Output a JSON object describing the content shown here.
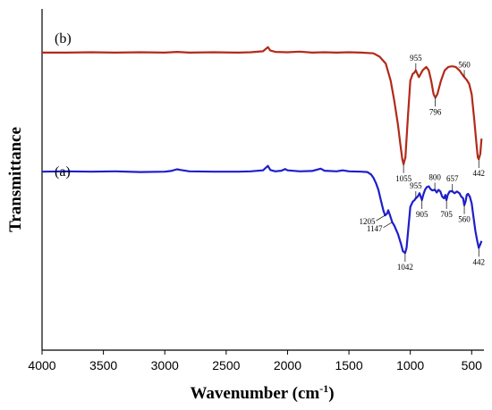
{
  "chart_data": {
    "type": "line",
    "title": "",
    "xlabel": "Wavenumber (cm",
    "xlabel_sup": "-1",
    "xlabel_tail": ")",
    "ylabel": "Transmittance",
    "xlim": [
      4000,
      400
    ],
    "x_reversed": true,
    "x_ticks": [
      "4000",
      "3500",
      "3000",
      "2500",
      "2000",
      "1500",
      "1000",
      "500"
    ],
    "grid": false,
    "legend": "none",
    "series": [
      {
        "name": "(b)",
        "color": "#b22a1a",
        "points": [
          [
            4000,
            0.872
          ],
          [
            3800,
            0.872
          ],
          [
            3600,
            0.873
          ],
          [
            3400,
            0.872
          ],
          [
            3200,
            0.873
          ],
          [
            3000,
            0.872
          ],
          [
            2900,
            0.874
          ],
          [
            2800,
            0.872
          ],
          [
            2600,
            0.873
          ],
          [
            2400,
            0.872
          ],
          [
            2300,
            0.873
          ],
          [
            2200,
            0.876
          ],
          [
            2160,
            0.888
          ],
          [
            2140,
            0.878
          ],
          [
            2100,
            0.874
          ],
          [
            2000,
            0.873
          ],
          [
            1900,
            0.875
          ],
          [
            1800,
            0.872
          ],
          [
            1700,
            0.873
          ],
          [
            1600,
            0.872
          ],
          [
            1500,
            0.873
          ],
          [
            1400,
            0.872
          ],
          [
            1300,
            0.87
          ],
          [
            1250,
            0.86
          ],
          [
            1200,
            0.84
          ],
          [
            1160,
            0.79
          ],
          [
            1130,
            0.73
          ],
          [
            1100,
            0.66
          ],
          [
            1080,
            0.6
          ],
          [
            1065,
            0.56
          ],
          [
            1055,
            0.545
          ],
          [
            1040,
            0.565
          ],
          [
            1020,
            0.68
          ],
          [
            1000,
            0.79
          ],
          [
            980,
            0.81
          ],
          [
            970,
            0.812
          ],
          [
            955,
            0.82
          ],
          [
            930,
            0.8
          ],
          [
            900,
            0.82
          ],
          [
            870,
            0.83
          ],
          [
            850,
            0.82
          ],
          [
            830,
            0.79
          ],
          [
            810,
            0.75
          ],
          [
            796,
            0.74
          ],
          [
            780,
            0.75
          ],
          [
            750,
            0.79
          ],
          [
            720,
            0.82
          ],
          [
            690,
            0.83
          ],
          [
            660,
            0.832
          ],
          [
            630,
            0.83
          ],
          [
            600,
            0.82
          ],
          [
            580,
            0.81
          ],
          [
            560,
            0.8
          ],
          [
            540,
            0.792
          ],
          [
            520,
            0.78
          ],
          [
            500,
            0.75
          ],
          [
            480,
            0.68
          ],
          [
            460,
            0.6
          ],
          [
            450,
            0.565
          ],
          [
            442,
            0.56
          ],
          [
            430,
            0.575
          ],
          [
            420,
            0.62
          ]
        ]
      },
      {
        "name": "(a)",
        "color": "#1e1ecc",
        "points": [
          [
            4000,
            0.523
          ],
          [
            3800,
            0.524
          ],
          [
            3600,
            0.523
          ],
          [
            3400,
            0.524
          ],
          [
            3200,
            0.522
          ],
          [
            3000,
            0.523
          ],
          [
            2950,
            0.525
          ],
          [
            2900,
            0.53
          ],
          [
            2870,
            0.528
          ],
          [
            2800,
            0.524
          ],
          [
            2600,
            0.523
          ],
          [
            2400,
            0.523
          ],
          [
            2300,
            0.524
          ],
          [
            2200,
            0.527
          ],
          [
            2160,
            0.54
          ],
          [
            2140,
            0.528
          ],
          [
            2100,
            0.524
          ],
          [
            2050,
            0.526
          ],
          [
            2020,
            0.531
          ],
          [
            2000,
            0.527
          ],
          [
            1900,
            0.524
          ],
          [
            1800,
            0.525
          ],
          [
            1730,
            0.532
          ],
          [
            1700,
            0.526
          ],
          [
            1600,
            0.524
          ],
          [
            1550,
            0.527
          ],
          [
            1500,
            0.524
          ],
          [
            1400,
            0.523
          ],
          [
            1350,
            0.522
          ],
          [
            1320,
            0.515
          ],
          [
            1300,
            0.505
          ],
          [
            1280,
            0.49
          ],
          [
            1260,
            0.47
          ],
          [
            1240,
            0.44
          ],
          [
            1220,
            0.41
          ],
          [
            1205,
            0.395
          ],
          [
            1190,
            0.4
          ],
          [
            1180,
            0.41
          ],
          [
            1165,
            0.395
          ],
          [
            1147,
            0.375
          ],
          [
            1130,
            0.365
          ],
          [
            1100,
            0.34
          ],
          [
            1075,
            0.31
          ],
          [
            1060,
            0.29
          ],
          [
            1042,
            0.285
          ],
          [
            1030,
            0.3
          ],
          [
            1015,
            0.36
          ],
          [
            1000,
            0.42
          ],
          [
            980,
            0.435
          ],
          [
            965,
            0.44
          ],
          [
            955,
            0.445
          ],
          [
            940,
            0.45
          ],
          [
            925,
            0.46
          ],
          [
            915,
            0.45
          ],
          [
            905,
            0.44
          ],
          [
            895,
            0.455
          ],
          [
            880,
            0.47
          ],
          [
            865,
            0.478
          ],
          [
            850,
            0.48
          ],
          [
            835,
            0.472
          ],
          [
            820,
            0.468
          ],
          [
            800,
            0.47
          ],
          [
            785,
            0.462
          ],
          [
            770,
            0.47
          ],
          [
            755,
            0.465
          ],
          [
            740,
            0.45
          ],
          [
            725,
            0.445
          ],
          [
            715,
            0.455
          ],
          [
            705,
            0.44
          ],
          [
            695,
            0.455
          ],
          [
            680,
            0.465
          ],
          [
            660,
            0.466
          ],
          [
            640,
            0.46
          ],
          [
            620,
            0.465
          ],
          [
            600,
            0.46
          ],
          [
            585,
            0.45
          ],
          [
            570,
            0.445
          ],
          [
            560,
            0.425
          ],
          [
            550,
            0.435
          ],
          [
            540,
            0.455
          ],
          [
            530,
            0.458
          ],
          [
            515,
            0.45
          ],
          [
            500,
            0.43
          ],
          [
            485,
            0.39
          ],
          [
            470,
            0.35
          ],
          [
            455,
            0.32
          ],
          [
            442,
            0.3
          ],
          [
            430,
            0.31
          ],
          [
            420,
            0.32
          ]
        ]
      }
    ],
    "annotations": [
      {
        "text": "955",
        "series": "(b)",
        "x": 955,
        "y": 0.82,
        "pos": "above"
      },
      {
        "text": "560",
        "series": "(b)",
        "x": 560,
        "y": 0.8,
        "pos": "above"
      },
      {
        "text": "796",
        "series": "(b)",
        "x": 796,
        "y": 0.74,
        "pos": "below"
      },
      {
        "text": "1055",
        "series": "(b)",
        "x": 1055,
        "y": 0.545,
        "pos": "below"
      },
      {
        "text": "442",
        "series": "(b)",
        "x": 442,
        "y": 0.56,
        "pos": "below"
      },
      {
        "text": "955",
        "series": "(a)",
        "x": 955,
        "y": 0.445,
        "pos": "above"
      },
      {
        "text": "800",
        "series": "(a)",
        "x": 800,
        "y": 0.47,
        "pos": "above"
      },
      {
        "text": "657",
        "series": "(a)",
        "x": 657,
        "y": 0.466,
        "pos": "above"
      },
      {
        "text": "905",
        "series": "(a)",
        "x": 905,
        "y": 0.44,
        "pos": "below"
      },
      {
        "text": "705",
        "series": "(a)",
        "x": 705,
        "y": 0.44,
        "pos": "below"
      },
      {
        "text": "560",
        "series": "(a)",
        "x": 560,
        "y": 0.425,
        "pos": "below"
      },
      {
        "text": "1205",
        "series": "(a)",
        "x": 1205,
        "y": 0.395,
        "pos": "left"
      },
      {
        "text": "1147",
        "series": "(a)",
        "x": 1147,
        "y": 0.375,
        "pos": "left"
      },
      {
        "text": "1042",
        "series": "(a)",
        "x": 1042,
        "y": 0.285,
        "pos": "below"
      },
      {
        "text": "442",
        "series": "(a)",
        "x": 442,
        "y": 0.3,
        "pos": "below"
      }
    ]
  }
}
